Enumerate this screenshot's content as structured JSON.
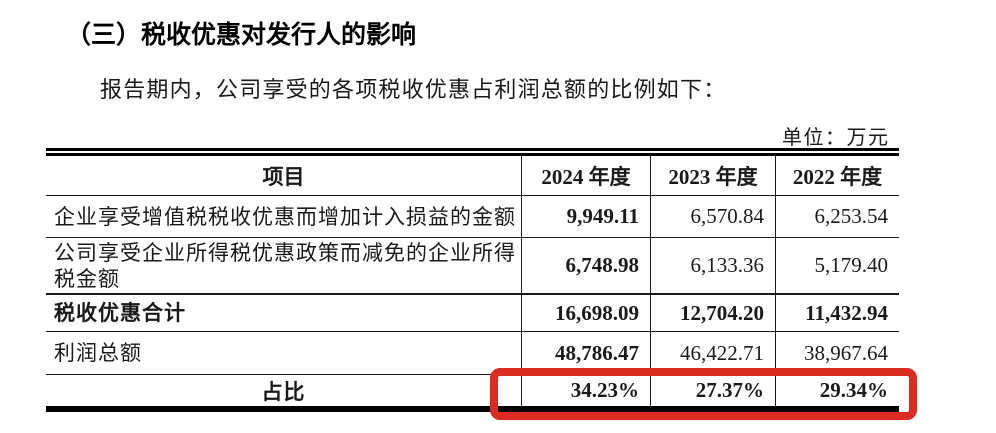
{
  "page": {
    "title": "（三）税收优惠对发行人的影响",
    "intro": "报告期内，公司享受的各项税收优惠占利润总额的比例如下：",
    "unit_label": "单位：万元"
  },
  "table": {
    "headers": [
      "项目",
      "2024 年度",
      "2023 年度",
      "2022 年度"
    ],
    "rows": [
      {
        "label": "企业享受增值税税收优惠而增加计入损益的金额",
        "values": [
          "9,949.11",
          "6,570.84",
          "6,253.54"
        ]
      },
      {
        "label": "公司享受企业所得税优惠政策而减免的企业所得税金额",
        "values": [
          "6,748.98",
          "6,133.36",
          "5,179.40"
        ]
      },
      {
        "label": "税收优惠合计",
        "values": [
          "16,698.09",
          "12,704.20",
          "11,432.94"
        ]
      },
      {
        "label": "利润总额",
        "values": [
          "48,786.47",
          "46,422.71",
          "38,967.64"
        ]
      },
      {
        "label": "占比",
        "values": [
          "34.23%",
          "27.37%",
          "29.34%"
        ]
      }
    ]
  },
  "annotation": {
    "highlight_color": "#da2c21"
  }
}
